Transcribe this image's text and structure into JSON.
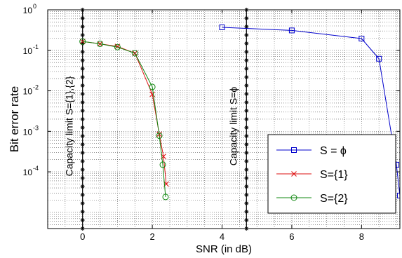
{
  "chart_data": {
    "type": "line",
    "xlabel": "SNR (in dB)",
    "ylabel": "Bit error rate",
    "xlim": [
      -1,
      9.1
    ],
    "ylim_log10": [
      -5.4,
      0
    ],
    "y_scale": "log",
    "grid": true,
    "legend_position": "lower-right",
    "x_ticks": [
      {
        "value": 0,
        "label": "0"
      },
      {
        "value": 2,
        "label": "2"
      },
      {
        "value": 4,
        "label": "4"
      },
      {
        "value": 6,
        "label": "6"
      },
      {
        "value": 8,
        "label": "8"
      }
    ],
    "y_ticks": [
      {
        "exp": 0,
        "base": "10",
        "sup": "0"
      },
      {
        "exp": -1,
        "base": "10",
        "sup": "-1"
      },
      {
        "exp": -2,
        "base": "10",
        "sup": "-2"
      },
      {
        "exp": -3,
        "base": "10",
        "sup": "-3"
      },
      {
        "exp": -4,
        "base": "10",
        "sup": "-4"
      }
    ],
    "series": [
      {
        "name": "S = ϕ",
        "color": "#0000cc",
        "marker": "square",
        "x": [
          4,
          6,
          8,
          8.5,
          9.0,
          9.1
        ],
        "y": [
          0.37,
          0.31,
          0.195,
          0.062,
          0.00015,
          2.6e-05
        ]
      },
      {
        "name": "S={1}",
        "color": "#dd1111",
        "marker": "x",
        "x": [
          0,
          0.5,
          1.0,
          1.5,
          2.0,
          2.2,
          2.32,
          2.4
        ],
        "y": [
          0.165,
          0.145,
          0.125,
          0.085,
          0.0082,
          0.00085,
          0.00024,
          5e-05
        ]
      },
      {
        "name": "S={2}",
        "color": "#118811",
        "marker": "circle",
        "x": [
          0,
          0.5,
          1.0,
          1.5,
          2.0,
          2.2,
          2.3,
          2.38
        ],
        "y": [
          0.165,
          0.145,
          0.12,
          0.085,
          0.0125,
          0.00078,
          0.00015,
          2.4e-05
        ]
      }
    ],
    "vertical_lines": [
      {
        "x": 0,
        "label": "Capacity limit S={1},{2}"
      },
      {
        "x": 4.7,
        "label": "Capacity limit S=ϕ"
      }
    ]
  }
}
